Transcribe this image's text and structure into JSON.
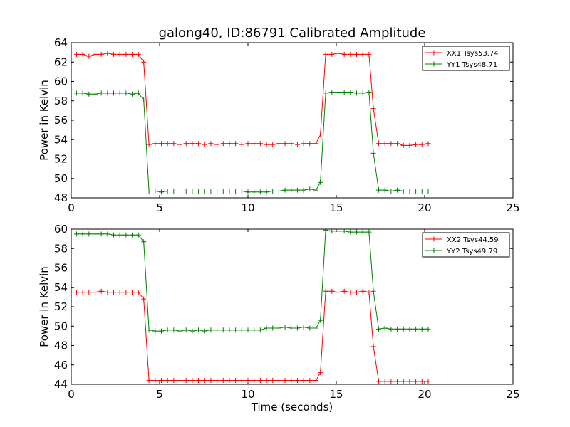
{
  "chart_data": {
    "type": "line",
    "title": "galong40, ID:86791 Calibrated Amplitude",
    "xlabel": "Time (seconds)",
    "grid": false,
    "panels": [
      {
        "ylabel": "Power in Kelvin",
        "xlim": [
          0,
          25
        ],
        "ylim": [
          48,
          64
        ],
        "xticks": [
          "0",
          "5",
          "10",
          "15",
          "20",
          "25"
        ],
        "yticks": [
          "48",
          "50",
          "52",
          "54",
          "56",
          "58",
          "60",
          "62",
          "64"
        ],
        "legend_position": "top-right",
        "x": [
          0.3,
          0.65,
          1.0,
          1.35,
          1.7,
          2.05,
          2.4,
          2.75,
          3.1,
          3.45,
          3.8,
          4.1,
          4.4,
          4.75,
          5.1,
          5.45,
          5.8,
          6.15,
          6.5,
          6.85,
          7.2,
          7.55,
          7.9,
          8.25,
          8.6,
          8.95,
          9.3,
          9.65,
          10.0,
          10.35,
          10.7,
          11.05,
          11.4,
          11.75,
          12.1,
          12.45,
          12.8,
          13.15,
          13.5,
          13.85,
          14.1,
          14.4,
          14.75,
          15.1,
          15.45,
          15.8,
          16.15,
          16.5,
          16.85,
          17.1,
          17.4,
          17.75,
          18.1,
          18.45,
          18.8,
          19.15,
          19.5,
          19.85,
          20.2
        ],
        "series": [
          {
            "name": "XX1 Tsys53.74",
            "color": "#ff0000",
            "values": [
              62.8,
              62.8,
              62.6,
              62.8,
              62.8,
              62.9,
              62.8,
              62.8,
              62.8,
              62.8,
              62.8,
              62.0,
              53.5,
              53.6,
              53.6,
              53.6,
              53.6,
              53.5,
              53.6,
              53.6,
              53.6,
              53.5,
              53.6,
              53.5,
              53.6,
              53.6,
              53.6,
              53.5,
              53.6,
              53.6,
              53.6,
              53.5,
              53.5,
              53.6,
              53.6,
              53.6,
              53.5,
              53.6,
              53.6,
              53.6,
              54.5,
              62.8,
              62.8,
              62.9,
              62.8,
              62.8,
              62.8,
              62.8,
              62.8,
              57.2,
              53.6,
              53.6,
              53.6,
              53.6,
              53.4,
              53.4,
              53.5,
              53.5,
              53.6
            ]
          },
          {
            "name": "YY1 Tsys48.71",
            "color": "#008000",
            "values": [
              58.8,
              58.8,
              58.7,
              58.7,
              58.8,
              58.8,
              58.8,
              58.8,
              58.8,
              58.7,
              58.8,
              58.1,
              48.7,
              48.7,
              48.6,
              48.7,
              48.7,
              48.7,
              48.7,
              48.7,
              48.7,
              48.7,
              48.7,
              48.7,
              48.7,
              48.7,
              48.7,
              48.7,
              48.6,
              48.6,
              48.6,
              48.6,
              48.7,
              48.7,
              48.8,
              48.8,
              48.8,
              48.8,
              48.9,
              48.8,
              49.6,
              58.8,
              58.9,
              58.9,
              58.9,
              58.9,
              58.8,
              58.8,
              58.9,
              52.6,
              48.8,
              48.8,
              48.7,
              48.8,
              48.7,
              48.7,
              48.7,
              48.7,
              48.7
            ]
          }
        ]
      },
      {
        "ylabel": "Power in Kelvin",
        "xlim": [
          0,
          25
        ],
        "ylim": [
          44,
          60
        ],
        "xticks": [
          "0",
          "5",
          "10",
          "15",
          "20",
          "25"
        ],
        "yticks": [
          "44",
          "46",
          "48",
          "50",
          "52",
          "54",
          "56",
          "58",
          "60"
        ],
        "legend_position": "top-right",
        "x": [
          0.3,
          0.65,
          1.0,
          1.35,
          1.7,
          2.05,
          2.4,
          2.75,
          3.1,
          3.45,
          3.8,
          4.1,
          4.4,
          4.75,
          5.1,
          5.45,
          5.8,
          6.15,
          6.5,
          6.85,
          7.2,
          7.55,
          7.9,
          8.25,
          8.6,
          8.95,
          9.3,
          9.65,
          10.0,
          10.35,
          10.7,
          11.05,
          11.4,
          11.75,
          12.1,
          12.45,
          12.8,
          13.15,
          13.5,
          13.85,
          14.1,
          14.4,
          14.75,
          15.1,
          15.45,
          15.8,
          16.15,
          16.5,
          16.85,
          17.1,
          17.4,
          17.75,
          18.1,
          18.45,
          18.8,
          19.15,
          19.5,
          19.85,
          20.2
        ],
        "series": [
          {
            "name": "XX2 Tsys44.59",
            "color": "#ff0000",
            "values": [
              53.5,
              53.5,
              53.5,
              53.5,
              53.6,
              53.5,
              53.5,
              53.5,
              53.5,
              53.5,
              53.5,
              52.8,
              44.4,
              44.4,
              44.4,
              44.4,
              44.4,
              44.4,
              44.4,
              44.4,
              44.4,
              44.4,
              44.4,
              44.4,
              44.4,
              44.4,
              44.4,
              44.4,
              44.4,
              44.4,
              44.4,
              44.4,
              44.4,
              44.4,
              44.4,
              44.4,
              44.4,
              44.4,
              44.4,
              44.4,
              45.2,
              53.6,
              53.6,
              53.5,
              53.6,
              53.5,
              53.5,
              53.6,
              53.5,
              47.9,
              44.3,
              44.3,
              44.3,
              44.3,
              44.3,
              44.3,
              44.3,
              44.3,
              44.3
            ]
          },
          {
            "name": "YY2 Tsys49.79",
            "color": "#008000",
            "values": [
              59.5,
              59.5,
              59.5,
              59.5,
              59.5,
              59.5,
              59.4,
              59.4,
              59.4,
              59.4,
              59.4,
              58.7,
              49.6,
              49.5,
              49.5,
              49.6,
              49.6,
              49.5,
              49.6,
              49.5,
              49.6,
              49.5,
              49.6,
              49.6,
              49.6,
              49.6,
              49.6,
              49.6,
              49.6,
              49.6,
              49.6,
              49.8,
              49.8,
              49.8,
              49.9,
              49.8,
              49.8,
              49.9,
              49.8,
              49.8,
              50.6,
              59.9,
              59.8,
              59.8,
              59.8,
              59.7,
              59.7,
              59.7,
              59.7,
              53.6,
              49.7,
              49.8,
              49.7,
              49.7,
              49.7,
              49.7,
              49.7,
              49.7,
              49.7
            ]
          }
        ]
      }
    ]
  }
}
